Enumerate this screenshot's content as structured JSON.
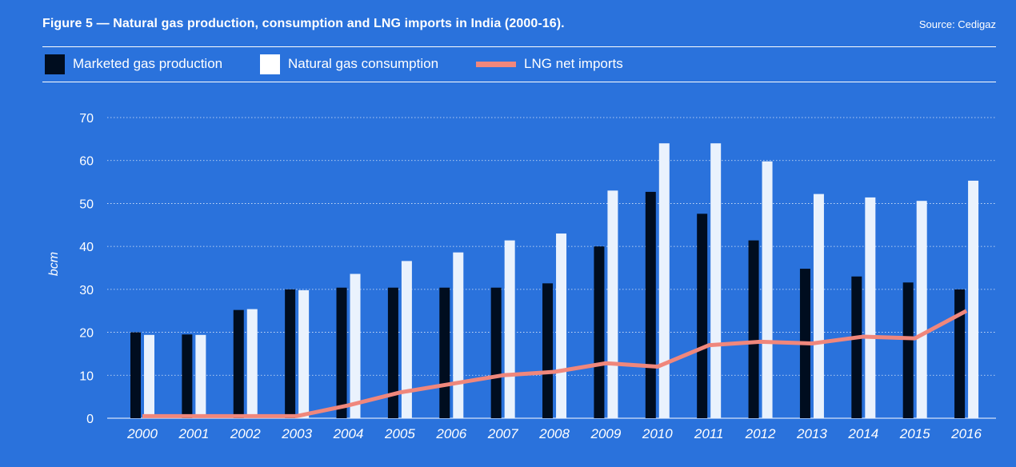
{
  "header": {
    "title": "Figure 5 — Natural gas production, consumption and LNG imports in India (2000-16).",
    "source": "Source: Cedigaz"
  },
  "legend": {
    "items": [
      {
        "label": "Marketed gas production",
        "kind": "bar",
        "color": "#000d1f"
      },
      {
        "label": "Natural gas consumption",
        "kind": "bar",
        "color": "#eaf2fd"
      },
      {
        "label": "LNG net imports",
        "kind": "line",
        "color": "#f0877c"
      }
    ]
  },
  "chart_data": {
    "type": "bar",
    "categories": [
      "2000",
      "2001",
      "2002",
      "2003",
      "2004",
      "2005",
      "2006",
      "2007",
      "2008",
      "2009",
      "2010",
      "2011",
      "2012",
      "2013",
      "2014",
      "2015",
      "2016"
    ],
    "series": [
      {
        "name": "Marketed gas production",
        "type": "bar",
        "color": "#000d1f",
        "values": [
          20,
          19.5,
          25.2,
          30,
          30.4,
          30.4,
          30.4,
          30.4,
          31.4,
          40,
          52.7,
          47.6,
          41.4,
          34.8,
          33,
          31.6,
          30
        ]
      },
      {
        "name": "Natural gas consumption",
        "type": "bar",
        "color": "#eaf2fd",
        "values": [
          19.4,
          19.4,
          25.4,
          29.8,
          33.6,
          36.6,
          38.6,
          41.4,
          43,
          53,
          64,
          64,
          59.8,
          52.2,
          51.4,
          50.6,
          55.3
        ]
      },
      {
        "name": "LNG net imports",
        "type": "line",
        "color": "#f0877c",
        "values": [
          0.5,
          0.5,
          0.5,
          0.5,
          3,
          6,
          8,
          10,
          10.8,
          12.8,
          12,
          17,
          17.8,
          17.4,
          19,
          18.6,
          25
        ]
      }
    ],
    "ylabel": "bcm",
    "ylim": [
      0,
      70
    ],
    "yticks": [
      0,
      10,
      20,
      30,
      40,
      50,
      60,
      70
    ],
    "grid": true
  }
}
